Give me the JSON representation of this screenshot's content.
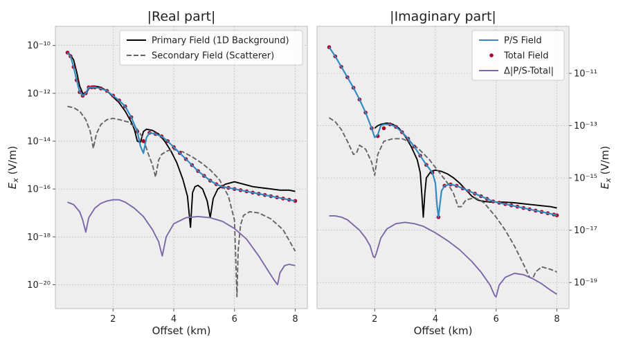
{
  "chart_data": [
    {
      "type": "line",
      "title": "|Real part|",
      "xlabel": "Offset (km)",
      "ylabel": "E_x (V/m)",
      "ylabel_pre": "E",
      "ylabel_sub": "x",
      "ylabel_post": " (V/m)",
      "yaxis_side": "left",
      "yscale": "log",
      "xlim": [
        0.1,
        8.4
      ],
      "ylim_exp": [
        -21.0,
        -9.2
      ],
      "xticks": [
        2,
        4,
        6,
        8
      ],
      "yticks_exp": [
        -20,
        -18,
        -16,
        -14,
        -12,
        -10
      ],
      "grid": true,
      "legend_position": "top-right",
      "series": [
        {
          "name": "Primary Field (1D Background)",
          "style": "solid",
          "color": "#000000",
          "x": [
            0.5,
            0.6,
            0.7,
            0.8,
            0.9,
            1.0,
            1.1,
            1.2,
            1.3,
            1.4,
            1.6,
            1.8,
            2.0,
            2.2,
            2.4,
            2.6,
            2.7,
            2.8,
            2.9,
            3.0,
            3.1,
            3.3,
            3.5,
            3.7,
            3.9,
            4.1,
            4.3,
            4.45,
            4.55,
            4.62,
            4.7,
            4.8,
            4.95,
            5.1,
            5.2,
            5.3,
            5.45,
            5.7,
            6.0,
            6.3,
            6.6,
            6.9,
            7.2,
            7.5,
            7.8,
            8.0
          ],
          "y_exp": [
            -10.3,
            -10.4,
            -10.6,
            -11.1,
            -11.7,
            -12.0,
            -12.05,
            -11.8,
            -11.7,
            -11.7,
            -11.75,
            -11.9,
            -12.15,
            -12.4,
            -12.75,
            -13.2,
            -13.5,
            -14.0,
            -14.05,
            -13.6,
            -13.5,
            -13.55,
            -13.7,
            -14.0,
            -14.4,
            -14.9,
            -15.6,
            -16.3,
            -17.6,
            -16.15,
            -15.9,
            -15.85,
            -16.0,
            -16.5,
            -17.2,
            -16.4,
            -16.0,
            -15.8,
            -15.7,
            -15.8,
            -15.9,
            -15.95,
            -16.0,
            -16.05,
            -16.05,
            -16.1
          ]
        },
        {
          "name": "Secondary Field (Scatterer)",
          "style": "dashed",
          "color": "#636363",
          "x": [
            0.5,
            0.7,
            0.9,
            1.1,
            1.25,
            1.35,
            1.45,
            1.6,
            1.8,
            2.0,
            2.2,
            2.5,
            2.8,
            3.0,
            3.15,
            3.3,
            3.4,
            3.5,
            3.6,
            3.8,
            4.0,
            4.3,
            4.6,
            4.9,
            5.2,
            5.5,
            5.8,
            6.0,
            6.08,
            6.12,
            6.2,
            6.3,
            6.5,
            6.8,
            7.2,
            7.6,
            8.0
          ],
          "y_exp": [
            -12.55,
            -12.6,
            -12.75,
            -13.1,
            -13.6,
            -14.3,
            -13.7,
            -13.3,
            -13.1,
            -13.05,
            -13.1,
            -13.2,
            -13.5,
            -13.9,
            -14.5,
            -15.0,
            -15.5,
            -14.8,
            -14.55,
            -14.4,
            -14.35,
            -14.45,
            -14.65,
            -14.9,
            -15.2,
            -15.6,
            -16.3,
            -17.3,
            -20.5,
            -18.6,
            -17.5,
            -17.1,
            -16.95,
            -17.0,
            -17.25,
            -17.7,
            -18.6
          ]
        },
        {
          "name": "Δ|P/S-Total|",
          "style": "solid",
          "color": "#7a68a6",
          "in_legend": false,
          "x": [
            0.5,
            0.7,
            0.9,
            1.0,
            1.1,
            1.2,
            1.4,
            1.6,
            1.8,
            2.0,
            2.2,
            2.4,
            2.7,
            3.0,
            3.3,
            3.5,
            3.62,
            3.75,
            4.0,
            4.4,
            4.8,
            5.2,
            5.6,
            6.0,
            6.4,
            6.8,
            7.1,
            7.3,
            7.42,
            7.5,
            7.65,
            7.8,
            8.0
          ],
          "y_exp": [
            -16.55,
            -16.65,
            -16.95,
            -17.3,
            -17.8,
            -17.2,
            -16.8,
            -16.6,
            -16.5,
            -16.45,
            -16.45,
            -16.55,
            -16.8,
            -17.15,
            -17.7,
            -18.2,
            -18.8,
            -18.0,
            -17.45,
            -17.2,
            -17.15,
            -17.2,
            -17.35,
            -17.65,
            -18.1,
            -18.8,
            -19.4,
            -19.8,
            -20.0,
            -19.5,
            -19.2,
            -19.15,
            -19.2
          ]
        },
        {
          "name": "Total Field",
          "style": "markers",
          "color": "#a60628",
          "in_legend": false,
          "x": [
            0.5,
            0.6,
            0.7,
            0.8,
            0.9,
            1.0,
            1.1,
            1.2,
            1.3,
            1.4,
            1.6,
            1.8,
            2.0,
            2.2,
            2.4,
            2.6,
            2.8,
            3.0,
            3.2,
            3.4,
            3.6,
            3.8,
            4.0,
            4.2,
            4.4,
            4.6,
            4.8,
            5.0,
            5.2,
            5.4,
            5.6,
            5.8,
            6.0,
            6.2,
            6.4,
            6.6,
            6.8,
            7.0,
            7.2,
            7.4,
            7.6,
            7.8,
            8.0
          ],
          "y_exp": [
            -10.3,
            -10.45,
            -10.9,
            -11.45,
            -11.95,
            -12.1,
            -12.0,
            -11.75,
            -11.75,
            -11.75,
            -11.8,
            -11.9,
            -12.1,
            -12.3,
            -12.55,
            -13.0,
            -13.6,
            -14.0,
            -13.65,
            -13.7,
            -13.8,
            -14.0,
            -14.25,
            -14.5,
            -14.75,
            -15.0,
            -15.25,
            -15.45,
            -15.65,
            -15.8,
            -15.9,
            -15.95,
            -16.0,
            -16.05,
            -16.1,
            -16.15,
            -16.2,
            -16.25,
            -16.3,
            -16.35,
            -16.4,
            -16.45,
            -16.5
          ]
        },
        {
          "name": "P/S Field",
          "style": "solid",
          "color": "#348abd",
          "in_legend": false,
          "linewidth": 2.2,
          "x": [
            0.5,
            0.6,
            0.7,
            0.8,
            0.9,
            1.0,
            1.1,
            1.2,
            1.3,
            1.4,
            1.6,
            1.8,
            2.0,
            2.2,
            2.4,
            2.6,
            2.7,
            2.8,
            2.9,
            3.0,
            3.1,
            3.2,
            3.4,
            3.6,
            3.8,
            4.0,
            4.2,
            4.4,
            4.6,
            4.8,
            5.0,
            5.2,
            5.4,
            5.6,
            5.8,
            6.0,
            6.2,
            6.4,
            6.6,
            6.8,
            7.0,
            7.2,
            7.4,
            7.6,
            7.8,
            8.0
          ],
          "y_exp": [
            -10.3,
            -10.45,
            -10.9,
            -11.45,
            -11.95,
            -12.1,
            -12.0,
            -11.75,
            -11.75,
            -11.75,
            -11.8,
            -11.9,
            -12.1,
            -12.3,
            -12.55,
            -13.0,
            -13.3,
            -13.6,
            -14.2,
            -14.5,
            -13.85,
            -13.65,
            -13.7,
            -13.8,
            -14.0,
            -14.25,
            -14.5,
            -14.75,
            -15.0,
            -15.25,
            -15.45,
            -15.65,
            -15.8,
            -15.9,
            -15.95,
            -16.0,
            -16.05,
            -16.1,
            -16.15,
            -16.2,
            -16.25,
            -16.3,
            -16.35,
            -16.4,
            -16.45,
            -16.5
          ]
        }
      ],
      "legend_order": [
        0,
        1
      ]
    },
    {
      "type": "line",
      "title": "|Imaginary part|",
      "xlabel": "Offset (km)",
      "ylabel": "E_x (V/m)",
      "ylabel_pre": "E",
      "ylabel_sub": "x",
      "ylabel_post": " (V/m)",
      "yaxis_side": "right",
      "yscale": "log",
      "xlim": [
        0.1,
        8.4
      ],
      "ylim_exp": [
        -20.0,
        -9.2
      ],
      "xticks": [
        2,
        4,
        6,
        8
      ],
      "yticks_exp": [
        -19,
        -17,
        -15,
        -13,
        -11
      ],
      "grid": true,
      "legend_position": "top-right",
      "series": [
        {
          "name": "Primary Field (1D Background)",
          "style": "solid",
          "color": "#000000",
          "in_legend": false,
          "x": [
            2.0,
            2.1,
            2.2,
            2.4,
            2.6,
            2.8,
            3.0,
            3.2,
            3.4,
            3.5,
            3.55,
            3.6,
            3.65,
            3.7,
            3.85,
            4.0,
            4.2,
            4.4,
            4.6,
            4.8,
            5.0,
            5.2,
            5.4,
            5.6,
            5.8,
            6.0,
            6.3,
            6.6,
            7.0,
            7.4,
            7.8,
            8.0
          ],
          "y_exp": [
            -13.1,
            -13.0,
            -12.95,
            -12.9,
            -12.95,
            -13.1,
            -13.4,
            -13.8,
            -14.3,
            -14.8,
            -15.6,
            -16.5,
            -15.6,
            -15.0,
            -14.75,
            -14.7,
            -14.75,
            -14.85,
            -15.0,
            -15.2,
            -15.45,
            -15.7,
            -15.85,
            -15.9,
            -15.92,
            -15.92,
            -15.93,
            -15.95,
            -16.0,
            -16.05,
            -16.1,
            -16.15
          ]
        },
        {
          "name": "Secondary Field (Scatterer)",
          "style": "dashed",
          "color": "#636363",
          "in_legend": false,
          "x": [
            0.5,
            0.7,
            0.9,
            1.1,
            1.3,
            1.4,
            1.5,
            1.7,
            1.9,
            2.0,
            2.1,
            2.3,
            2.6,
            2.9,
            3.2,
            3.5,
            3.8,
            4.0,
            4.2,
            4.4,
            4.6,
            4.75,
            4.85,
            5.0,
            5.3,
            5.6,
            6.0,
            6.3,
            6.6,
            6.9,
            7.1,
            7.2,
            7.3,
            7.5,
            7.8,
            8.0
          ],
          "y_exp": [
            -12.7,
            -12.85,
            -13.15,
            -13.6,
            -14.1,
            -14.05,
            -13.75,
            -13.9,
            -14.4,
            -14.9,
            -14.1,
            -13.6,
            -13.5,
            -13.5,
            -13.65,
            -13.95,
            -14.3,
            -14.6,
            -14.9,
            -15.2,
            -15.6,
            -16.1,
            -16.1,
            -15.85,
            -15.75,
            -15.95,
            -16.5,
            -17.0,
            -17.6,
            -18.3,
            -18.8,
            -18.85,
            -18.6,
            -18.4,
            -18.5,
            -18.6
          ]
        },
        {
          "name": "Δ|P/S-Total|",
          "style": "solid",
          "color": "#7a68a6",
          "x": [
            0.5,
            0.7,
            0.9,
            1.1,
            1.3,
            1.5,
            1.7,
            1.85,
            1.95,
            2.0,
            2.05,
            2.2,
            2.4,
            2.7,
            3.0,
            3.3,
            3.6,
            4.0,
            4.4,
            4.8,
            5.2,
            5.5,
            5.8,
            5.95,
            6.0,
            6.1,
            6.3,
            6.6,
            6.9,
            7.2,
            7.5,
            7.8,
            8.0
          ],
          "y_exp": [
            -16.45,
            -16.45,
            -16.5,
            -16.6,
            -16.8,
            -17.0,
            -17.3,
            -17.6,
            -18.0,
            -18.05,
            -17.9,
            -17.3,
            -16.95,
            -16.75,
            -16.7,
            -16.75,
            -16.85,
            -17.1,
            -17.4,
            -17.75,
            -18.2,
            -18.6,
            -19.1,
            -19.5,
            -19.55,
            -19.1,
            -18.8,
            -18.65,
            -18.7,
            -18.85,
            -19.05,
            -19.3,
            -19.45
          ]
        },
        {
          "name": "Total Field",
          "style": "markers",
          "color": "#a60628",
          "x": [
            0.5,
            0.7,
            0.9,
            1.1,
            1.3,
            1.5,
            1.7,
            1.9,
            2.1,
            2.3,
            2.5,
            2.7,
            2.9,
            3.1,
            3.3,
            3.5,
            3.7,
            3.9,
            4.1,
            4.3,
            4.5,
            4.7,
            4.9,
            5.1,
            5.3,
            5.5,
            5.7,
            5.9,
            6.1,
            6.3,
            6.5,
            6.7,
            6.9,
            7.1,
            7.3,
            7.5,
            7.7,
            7.9,
            8.0
          ],
          "y_exp": [
            -10.0,
            -10.35,
            -10.75,
            -11.15,
            -11.55,
            -12.0,
            -12.5,
            -13.1,
            -13.4,
            -13.1,
            -12.95,
            -13.05,
            -13.25,
            -13.5,
            -13.8,
            -14.15,
            -14.5,
            -14.8,
            -16.5,
            -15.3,
            -15.25,
            -15.3,
            -15.4,
            -15.5,
            -15.6,
            -15.7,
            -15.8,
            -15.9,
            -15.95,
            -16.0,
            -16.05,
            -16.1,
            -16.15,
            -16.2,
            -16.25,
            -16.3,
            -16.35,
            -16.4,
            -16.43
          ]
        },
        {
          "name": "P/S Field",
          "style": "solid",
          "color": "#348abd",
          "linewidth": 2.2,
          "x": [
            0.5,
            0.7,
            0.9,
            1.1,
            1.3,
            1.5,
            1.7,
            1.9,
            2.0,
            2.1,
            2.2,
            2.3,
            2.5,
            2.7,
            2.9,
            3.1,
            3.3,
            3.5,
            3.7,
            3.9,
            4.0,
            4.05,
            4.1,
            4.15,
            4.2,
            4.3,
            4.5,
            4.7,
            4.9,
            5.1,
            5.3,
            5.5,
            5.7,
            5.9,
            6.1,
            6.3,
            6.5,
            6.7,
            6.9,
            7.1,
            7.3,
            7.5,
            7.7,
            7.9,
            8.0
          ],
          "y_exp": [
            -10.0,
            -10.35,
            -10.75,
            -11.15,
            -11.55,
            -12.0,
            -12.5,
            -13.1,
            -13.45,
            -13.35,
            -13.0,
            -12.95,
            -12.95,
            -13.05,
            -13.25,
            -13.5,
            -13.8,
            -14.15,
            -14.5,
            -14.8,
            -15.2,
            -16.0,
            -16.5,
            -16.0,
            -15.5,
            -15.3,
            -15.25,
            -15.3,
            -15.4,
            -15.5,
            -15.6,
            -15.7,
            -15.8,
            -15.9,
            -15.95,
            -16.0,
            -16.05,
            -16.1,
            -16.15,
            -16.2,
            -16.25,
            -16.3,
            -16.35,
            -16.4,
            -16.43
          ]
        }
      ],
      "legend_order": [
        4,
        3,
        2
      ]
    }
  ]
}
